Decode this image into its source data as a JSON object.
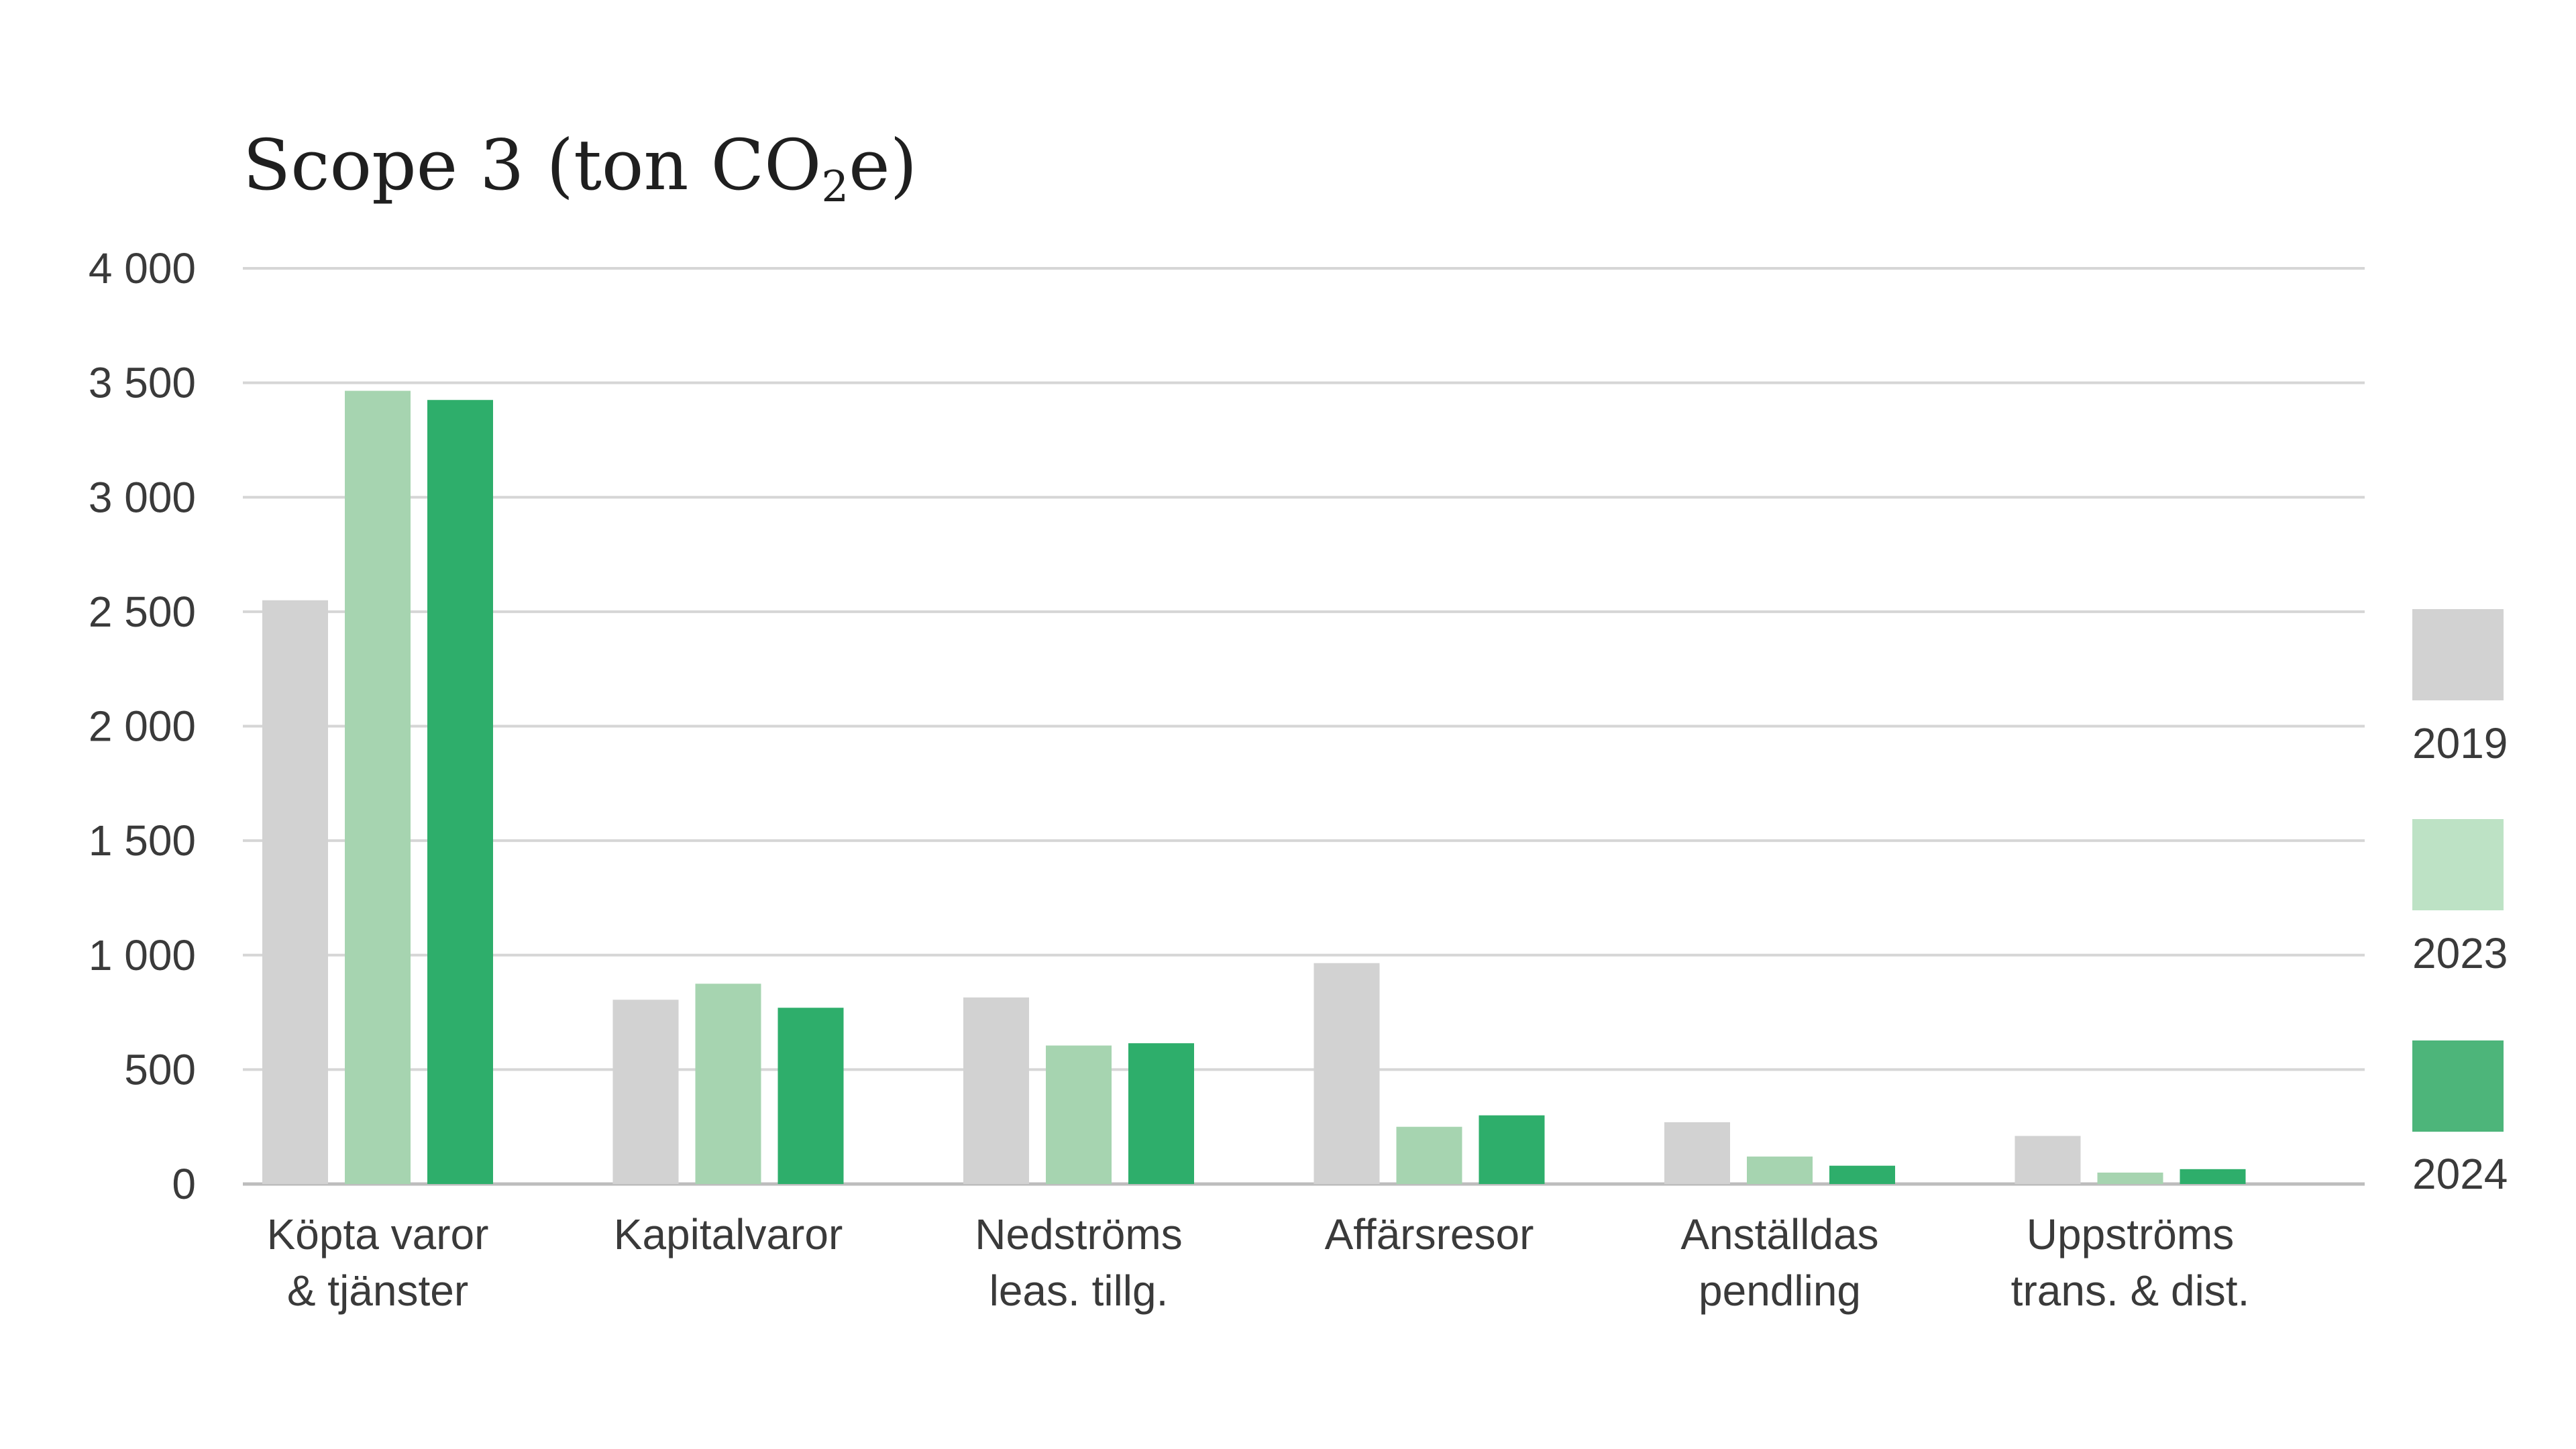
{
  "chart_data": {
    "type": "bar",
    "title_main": "Scope 3 (ton CO",
    "title_sub": "2",
    "title_end": "e)",
    "title": "Scope 3 (ton CO₂e)",
    "xlabel": "",
    "ylabel": "",
    "ylim": [
      0,
      4000
    ],
    "yticks": [
      0,
      500,
      1000,
      1500,
      2000,
      2500,
      3000,
      3500,
      4000
    ],
    "ytick_labels": [
      "0",
      "500",
      "1 000",
      "1 500",
      "2 000",
      "2 500",
      "3 000",
      "3 500",
      "4 000"
    ],
    "grid": true,
    "legend_position": "right",
    "categories": [
      [
        "Köpta varor",
        "& tjänster"
      ],
      [
        "Kapitalvaror"
      ],
      [
        "Nedströms",
        "leas. tillg."
      ],
      [
        "Affärsresor"
      ],
      [
        "Anställdas",
        "pendling"
      ],
      [
        "Uppströms",
        "trans. & dist."
      ]
    ],
    "series": [
      {
        "name": "2019",
        "color": "#d2d2d2",
        "values": [
          2550,
          805,
          815,
          965,
          270,
          210
        ]
      },
      {
        "name": "2023",
        "color": "#a6d4b0",
        "values": [
          3465,
          875,
          605,
          250,
          120,
          50
        ]
      },
      {
        "name": "2024",
        "color": "#2eae6b",
        "values": [
          3425,
          770,
          615,
          300,
          80,
          65
        ]
      }
    ],
    "legend": [
      {
        "name": "2019",
        "color": "#d2d2d2"
      },
      {
        "name": "2023",
        "color": "#bde2c5"
      },
      {
        "name": "2024",
        "color": "#4db57a"
      }
    ]
  }
}
